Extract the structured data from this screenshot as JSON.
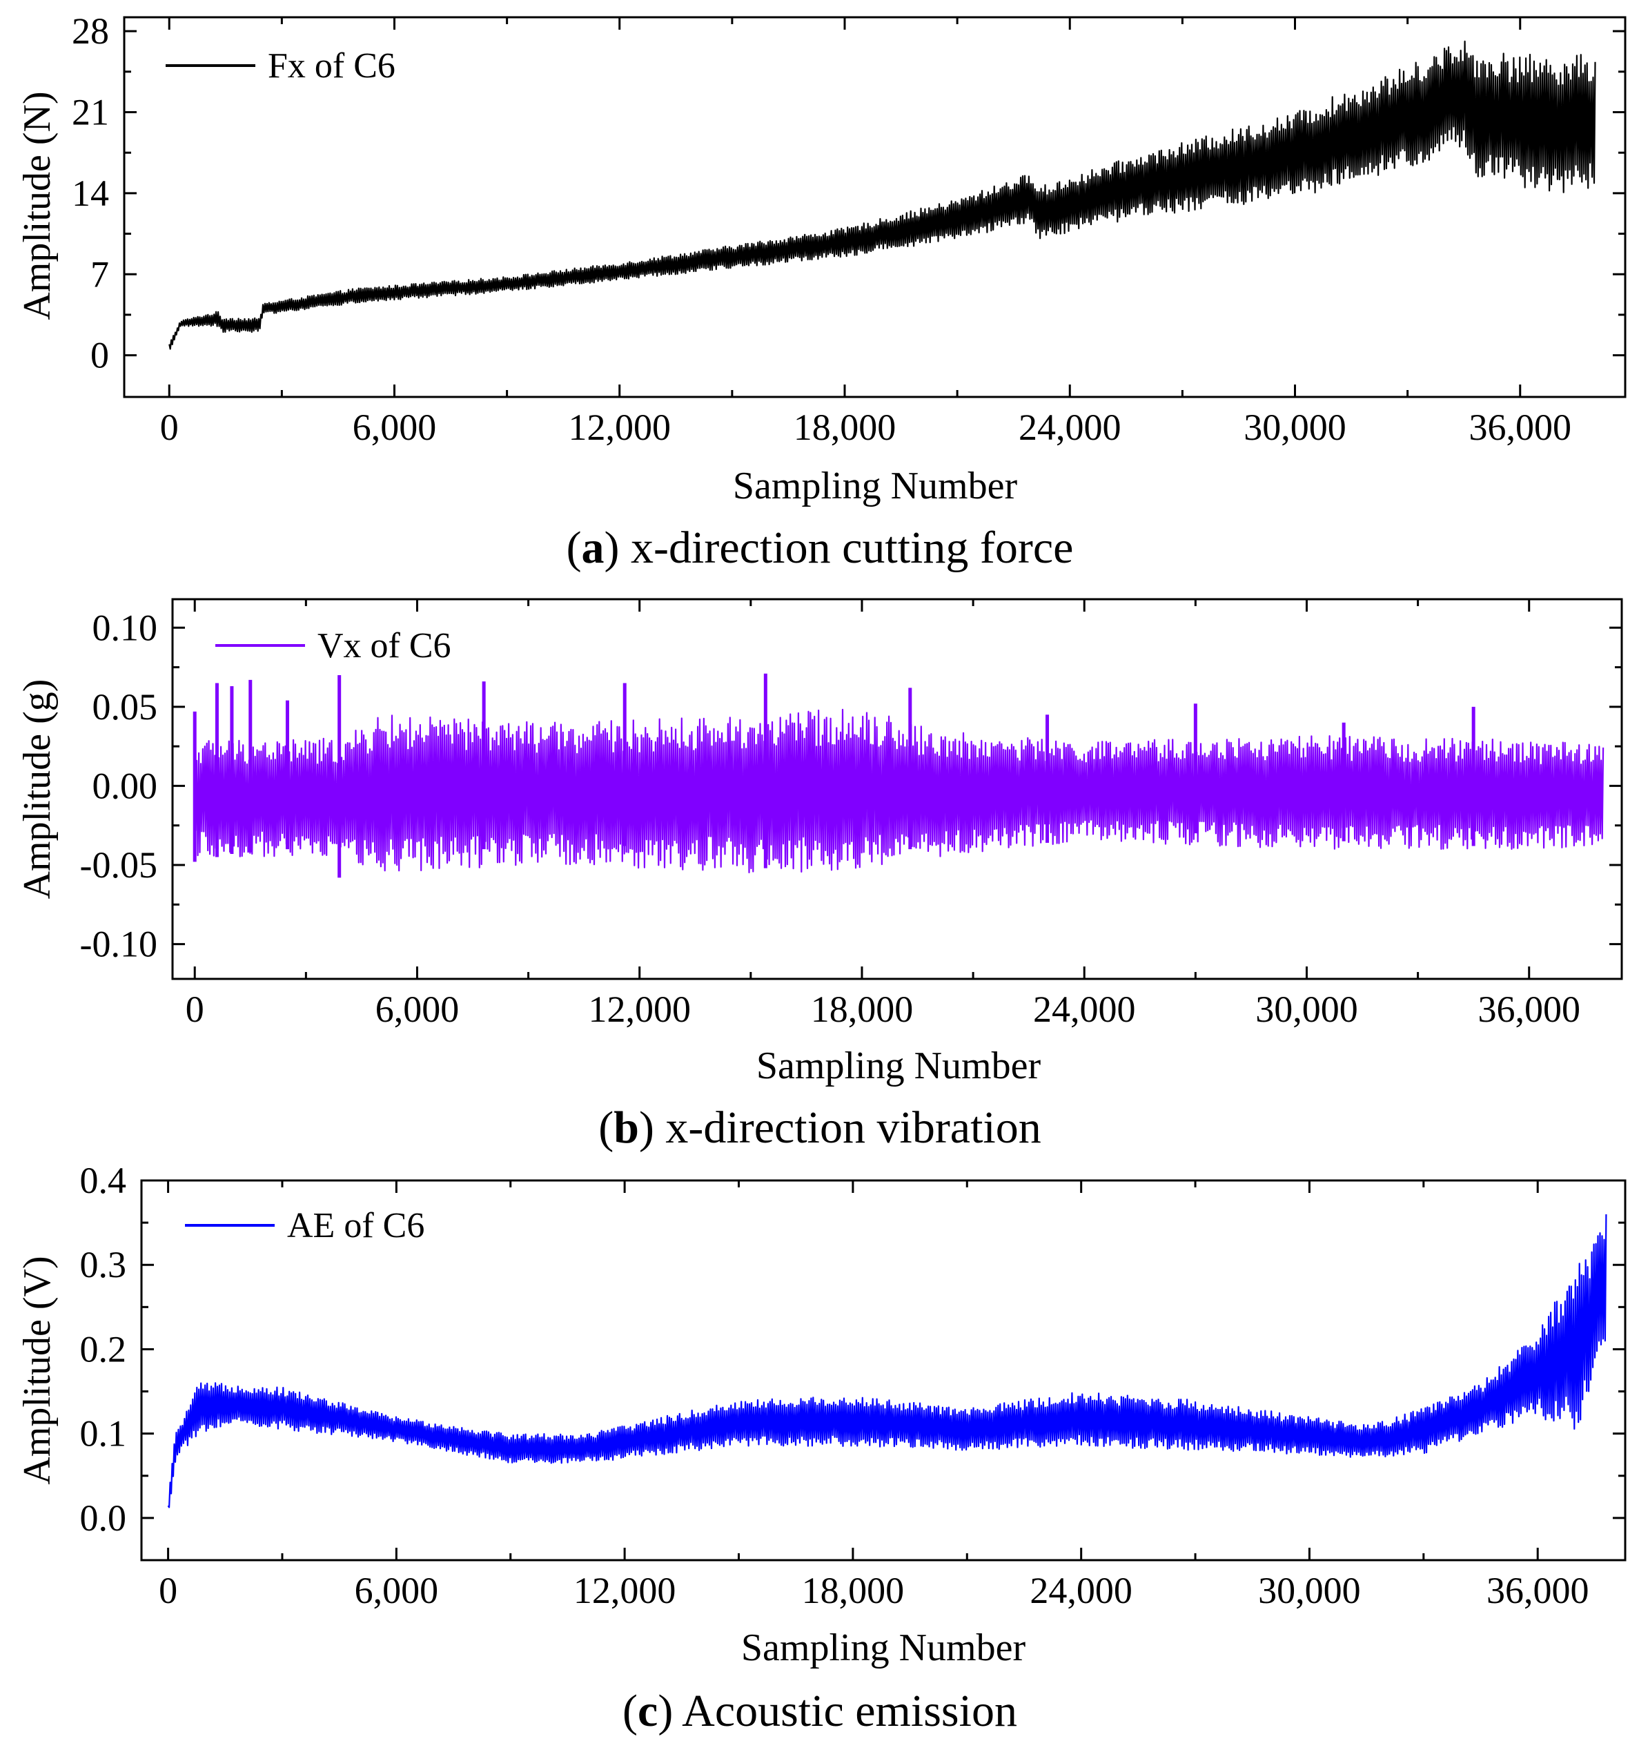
{
  "chart_data": [
    {
      "type": "line",
      "panel": "a",
      "caption_letter": "a",
      "caption_text": "x-direction cutting force",
      "xlabel": "Sampling Number",
      "ylabel": "Amplitude (N)",
      "xlim": [
        -1200,
        38800
      ],
      "ylim": [
        -3.6,
        29.2
      ],
      "xticks": [
        0,
        6000,
        12000,
        18000,
        24000,
        30000,
        36000
      ],
      "xtick_labels": [
        "0",
        "6,000",
        "12,000",
        "18,000",
        "24,000",
        "30,000",
        "36,000"
      ],
      "yticks": [
        0,
        7,
        14,
        21,
        28
      ],
      "ytick_labels": [
        "0",
        "7",
        "14",
        "21",
        "28"
      ],
      "grid": false,
      "legend": "top-left",
      "series": [
        {
          "name": "Fx of C6",
          "color": "#000000",
          "envelope": {
            "x": [
              0,
              300,
              1300,
              1400,
              2400,
              2500,
              5000,
              9000,
              12000,
              15000,
              18000,
              21000,
              23000,
              23100,
              26000,
              30000,
              33000,
              34500,
              34700,
              36000,
              37000,
              38000
            ],
            "upper": [
              1.0,
              3.0,
              3.8,
              3.3,
              3.2,
              4.5,
              5.8,
              6.8,
              8.0,
              9.5,
              11.0,
              13.5,
              15.8,
              14.5,
              17.5,
              21.0,
              25.0,
              27.5,
              26.5,
              26.0,
              26.0,
              26.0
            ],
            "lower": [
              0.2,
              2.5,
              2.5,
              2.0,
              2.0,
              3.5,
              4.5,
              5.5,
              6.5,
              7.5,
              8.5,
              10.0,
              11.5,
              10.0,
              12.0,
              13.5,
              16.0,
              18.0,
              15.0,
              14.5,
              14.0,
              14.0
            ]
          }
        }
      ]
    },
    {
      "type": "line",
      "panel": "b",
      "caption_letter": "b",
      "caption_text": "x-direction vibration",
      "xlabel": "Sampling Number",
      "ylabel": "Amplitude (g)",
      "xlim": [
        -600,
        38500
      ],
      "ylim": [
        -0.122,
        0.118
      ],
      "xticks": [
        0,
        6000,
        12000,
        18000,
        24000,
        30000,
        36000
      ],
      "xtick_labels": [
        "0",
        "6,000",
        "12,000",
        "18,000",
        "24,000",
        "30,000",
        "36,000"
      ],
      "yticks": [
        0.1,
        0.05,
        0.0,
        -0.05,
        -0.1
      ],
      "ytick_labels": [
        "0.10",
        "0.05",
        "0.00",
        "-0.05",
        "-0.10"
      ],
      "grid": false,
      "legend": "top-left",
      "series": [
        {
          "name": "Vx of C6",
          "color": "#8000ff",
          "envelope": {
            "x": [
              0,
              4000,
              5000,
              10000,
              15000,
              18000,
              20000,
              24000,
              30000,
              38000
            ],
            "upper": [
              0.03,
              0.03,
              0.045,
              0.04,
              0.045,
              0.05,
              0.035,
              0.028,
              0.032,
              0.028
            ],
            "lower": [
              -0.045,
              -0.045,
              -0.055,
              -0.05,
              -0.055,
              -0.055,
              -0.045,
              -0.035,
              -0.04,
              -0.04
            ]
          },
          "spikes": [
            {
              "x": 0,
              "top": 0.047,
              "bottom": -0.048
            },
            {
              "x": 600,
              "top": 0.065,
              "bottom": -0.045
            },
            {
              "x": 1000,
              "top": 0.063,
              "bottom": -0.043
            },
            {
              "x": 1500,
              "top": 0.067,
              "bottom": -0.042
            },
            {
              "x": 2500,
              "top": 0.054,
              "bottom": -0.04
            },
            {
              "x": 3900,
              "top": 0.07,
              "bottom": -0.058
            },
            {
              "x": 7800,
              "top": 0.066,
              "bottom": -0.04
            },
            {
              "x": 11600,
              "top": 0.065,
              "bottom": -0.038
            },
            {
              "x": 15400,
              "top": 0.071,
              "bottom": -0.052
            },
            {
              "x": 19300,
              "top": 0.062,
              "bottom": -0.04
            },
            {
              "x": 23000,
              "top": 0.045,
              "bottom": -0.036
            },
            {
              "x": 27000,
              "top": 0.052,
              "bottom": -0.03
            },
            {
              "x": 31000,
              "top": 0.04,
              "bottom": -0.035
            },
            {
              "x": 34500,
              "top": 0.05,
              "bottom": -0.038
            }
          ]
        }
      ]
    },
    {
      "type": "line",
      "panel": "c",
      "caption_letter": "c",
      "caption_text": "Acoustic emission",
      "xlabel": "Sampling Number",
      "ylabel": "Amplitude (V)",
      "xlim": [
        -700,
        38300
      ],
      "ylim": [
        -0.05,
        0.4
      ],
      "xticks": [
        0,
        6000,
        12000,
        18000,
        24000,
        30000,
        36000
      ],
      "xtick_labels": [
        "0",
        "6,000",
        "12,000",
        "18,000",
        "24,000",
        "30,000",
        "36,000"
      ],
      "yticks": [
        0.0,
        0.1,
        0.2,
        0.3,
        0.4
      ],
      "ytick_labels": [
        "0.0",
        "0.1",
        "0.2",
        "0.3",
        "0.4"
      ],
      "grid": false,
      "legend": "top-left",
      "series": [
        {
          "name": "AE of C6",
          "color": "#0000ff",
          "envelope": {
            "x": [
              0,
              100,
              200,
              800,
              1500,
              3000,
              6000,
              9000,
              11000,
              13000,
              15000,
              18000,
              21000,
              24000,
              27000,
              30000,
              31500,
              33000,
              34500,
              36000,
              37000,
              37500,
              37800
            ],
            "upper": [
              0.015,
              0.07,
              0.1,
              0.16,
              0.16,
              0.155,
              0.12,
              0.1,
              0.1,
              0.12,
              0.14,
              0.145,
              0.13,
              0.15,
              0.14,
              0.12,
              0.11,
              0.13,
              0.16,
              0.22,
              0.3,
              0.33,
              0.37
            ],
            "lower": [
              0.005,
              0.03,
              0.07,
              0.1,
              0.11,
              0.105,
              0.09,
              0.065,
              0.065,
              0.075,
              0.085,
              0.085,
              0.08,
              0.085,
              0.08,
              0.075,
              0.07,
              0.075,
              0.1,
              0.12,
              0.1,
              0.16,
              0.19
            ]
          }
        }
      ]
    }
  ]
}
